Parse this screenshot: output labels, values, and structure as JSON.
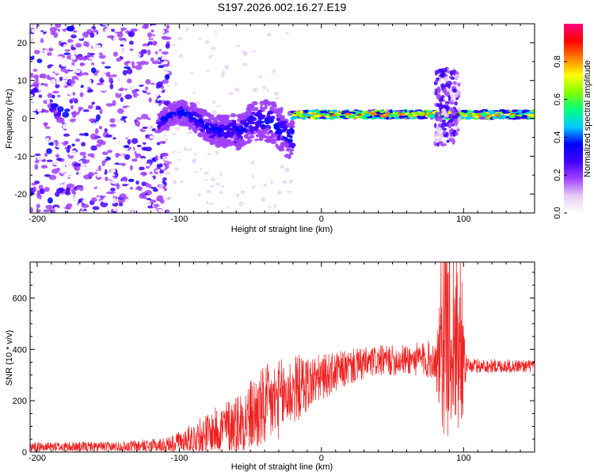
{
  "title": "S197.2026.002.16.27.E19",
  "chart_data": [
    {
      "type": "heatmap",
      "id": "spectrogram",
      "xlabel": "Height of straight line (km)",
      "ylabel": "Frequency (Hz)",
      "xlim": [
        -205,
        150
      ],
      "ylim": [
        -25,
        25
      ],
      "xticks": [
        -200,
        -100,
        0,
        100
      ],
      "yticks": [
        -20,
        -10,
        0,
        10,
        20
      ],
      "colorbar": {
        "label": "Normalized spectral amplitude",
        "range": [
          0,
          1
        ],
        "ticks": [
          0.0,
          0.2,
          0.4,
          0.6,
          0.8
        ],
        "colors": [
          "#ffffff",
          "#e6ccf5",
          "#a040ff",
          "#4000ff",
          "#0000ff",
          "#00ccff",
          "#00ff80",
          "#80ff00",
          "#ffff00",
          "#ff8000",
          "#ff0000",
          "#ff0080"
        ]
      },
      "features": [
        {
          "name": "broadband noise",
          "x_range": [
            -205,
            -115
          ],
          "freq_range": [
            -25,
            25
          ],
          "amplitude": 0.1
        },
        {
          "name": "emerging tone",
          "x_range": [
            -115,
            -20
          ],
          "freq_center": -3,
          "freq_spread": 6,
          "amplitude": 0.3
        },
        {
          "name": "carrier line",
          "x_range": [
            -20,
            150
          ],
          "freq_center": 1,
          "freq_spread": 1,
          "amplitude": 0.75
        },
        {
          "name": "burst",
          "x_range": [
            80,
            97
          ],
          "freq_range": [
            -7,
            13
          ],
          "amplitude": 0.25
        }
      ]
    },
    {
      "type": "line",
      "id": "snr",
      "xlabel": "Height of straight line (km)",
      "ylabel": "SNR (10 * v/v)",
      "xlim": [
        -205,
        150
      ],
      "ylim": [
        0,
        740
      ],
      "xticks": [
        -200,
        -100,
        0,
        100
      ],
      "yticks": [
        0,
        200,
        400,
        600
      ],
      "color": "#ee2222",
      "trend": {
        "x": [
          -205,
          -150,
          -110,
          -90,
          -60,
          -40,
          -20,
          0,
          20,
          40,
          60,
          80,
          95,
          100,
          120,
          150
        ],
        "y": [
          20,
          20,
          25,
          55,
          110,
          170,
          240,
          290,
          330,
          355,
          360,
          360,
          350,
          335,
          335,
          335
        ]
      },
      "noise": {
        "x": [
          -205,
          -150,
          -110,
          -90,
          -60,
          -40,
          -20,
          0,
          20,
          40,
          60,
          80,
          85,
          98,
          102,
          150
        ],
        "amplitude": [
          20,
          20,
          30,
          60,
          120,
          170,
          140,
          90,
          70,
          60,
          60,
          80,
          300,
          300,
          30,
          25
        ]
      }
    }
  ]
}
